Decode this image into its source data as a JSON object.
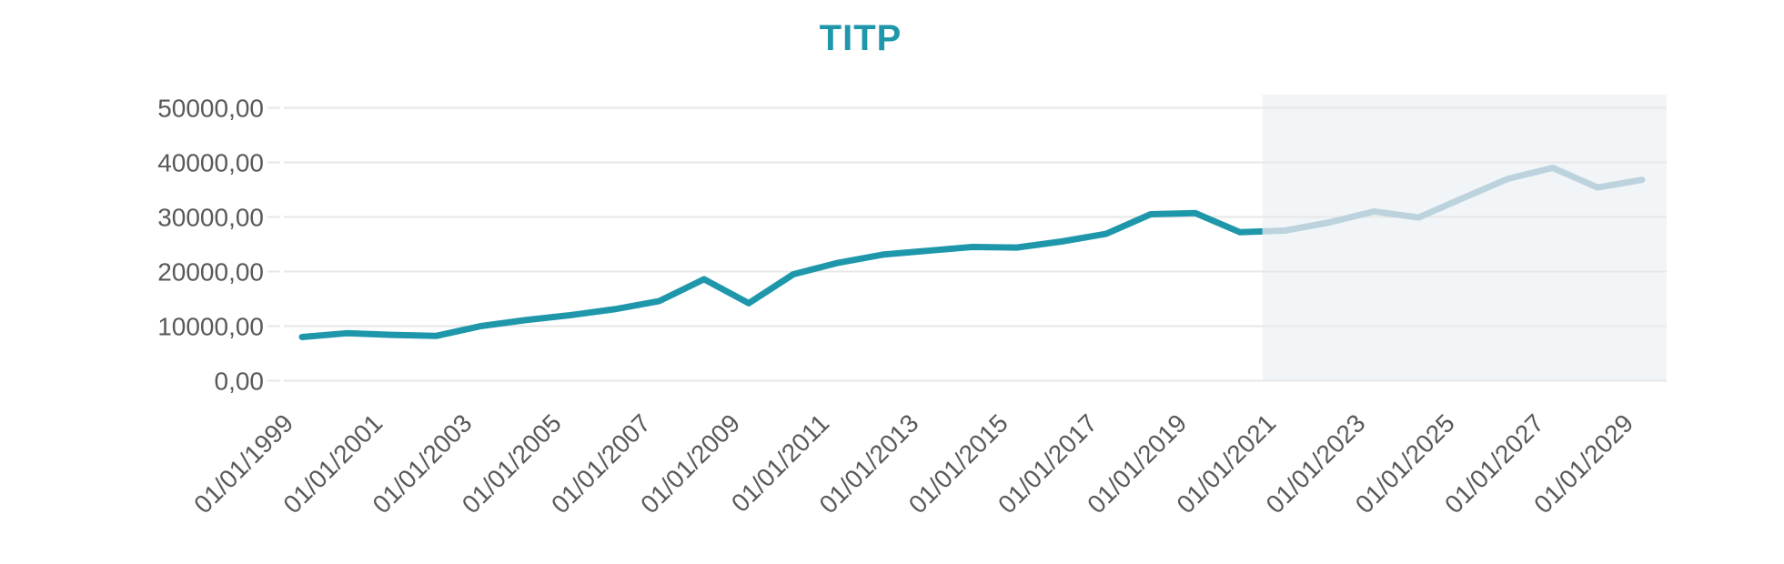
{
  "title": "TITP",
  "colors": {
    "title": "#1f97ab",
    "historical_line": "#1f97ab",
    "forecast_line": "#bcd3dd",
    "forecast_band": "#f1f5f8",
    "gridline": "#e7e7e7",
    "axis_label": "#595959",
    "background": "#ffffff"
  },
  "chart_data": {
    "type": "line",
    "title": "TITP",
    "xlabel": "",
    "ylabel": "",
    "ylim": [
      0,
      50000
    ],
    "x_range_years": [
      1999,
      2029
    ],
    "grid": "horizontal",
    "legend_position": "none",
    "x_tick_label_rotation_deg": 45,
    "y_ticks": [
      {
        "value": 0,
        "label": "0,00"
      },
      {
        "value": 10000,
        "label": "10000,00"
      },
      {
        "value": 20000,
        "label": "20000,00"
      },
      {
        "value": 30000,
        "label": "30000,00"
      },
      {
        "value": 40000,
        "label": "40000,00"
      },
      {
        "value": 50000,
        "label": "50000,00"
      }
    ],
    "x_ticks": [
      {
        "year": 1999,
        "label": "01/01/1999"
      },
      {
        "year": 2001,
        "label": "01/01/2001"
      },
      {
        "year": 2003,
        "label": "01/01/2003"
      },
      {
        "year": 2005,
        "label": "01/01/2005"
      },
      {
        "year": 2007,
        "label": "01/01/2007"
      },
      {
        "year": 2009,
        "label": "01/01/2009"
      },
      {
        "year": 2011,
        "label": "01/01/2011"
      },
      {
        "year": 2013,
        "label": "01/01/2013"
      },
      {
        "year": 2015,
        "label": "01/01/2015"
      },
      {
        "year": 2017,
        "label": "01/01/2017"
      },
      {
        "year": 2019,
        "label": "01/01/2019"
      },
      {
        "year": 2021,
        "label": "01/01/2021"
      },
      {
        "year": 2023,
        "label": "01/01/2023"
      },
      {
        "year": 2025,
        "label": "01/01/2025"
      },
      {
        "year": 2027,
        "label": "01/01/2027"
      },
      {
        "year": 2029,
        "label": "01/01/2029"
      }
    ],
    "forecast_band": {
      "start_year": 2020.5,
      "end_at_plot_right": true
    },
    "series": [
      {
        "name": "historical",
        "color": "#1f97ab",
        "x": [
          1999,
          2000,
          2001,
          2002,
          2003,
          2004,
          2005,
          2006,
          2007,
          2008,
          2009,
          2010,
          2011,
          2012,
          2013,
          2014,
          2015,
          2016,
          2017,
          2018,
          2019,
          2020,
          2021
        ],
        "values": [
          8000,
          8700,
          8400,
          8200,
          10000,
          11100,
          12000,
          13100,
          14600,
          18600,
          14200,
          19500,
          21600,
          23100,
          23800,
          24500,
          24400,
          25500,
          26900,
          30500,
          30700,
          27200,
          27500
        ]
      },
      {
        "name": "forecast",
        "color": "#bcd3dd",
        "x": [
          2021,
          2022,
          2023,
          2024,
          2025,
          2026,
          2027,
          2028,
          2029
        ],
        "values": [
          27500,
          29000,
          31000,
          29900,
          33500,
          37000,
          39000,
          35400,
          36800
        ]
      }
    ]
  }
}
